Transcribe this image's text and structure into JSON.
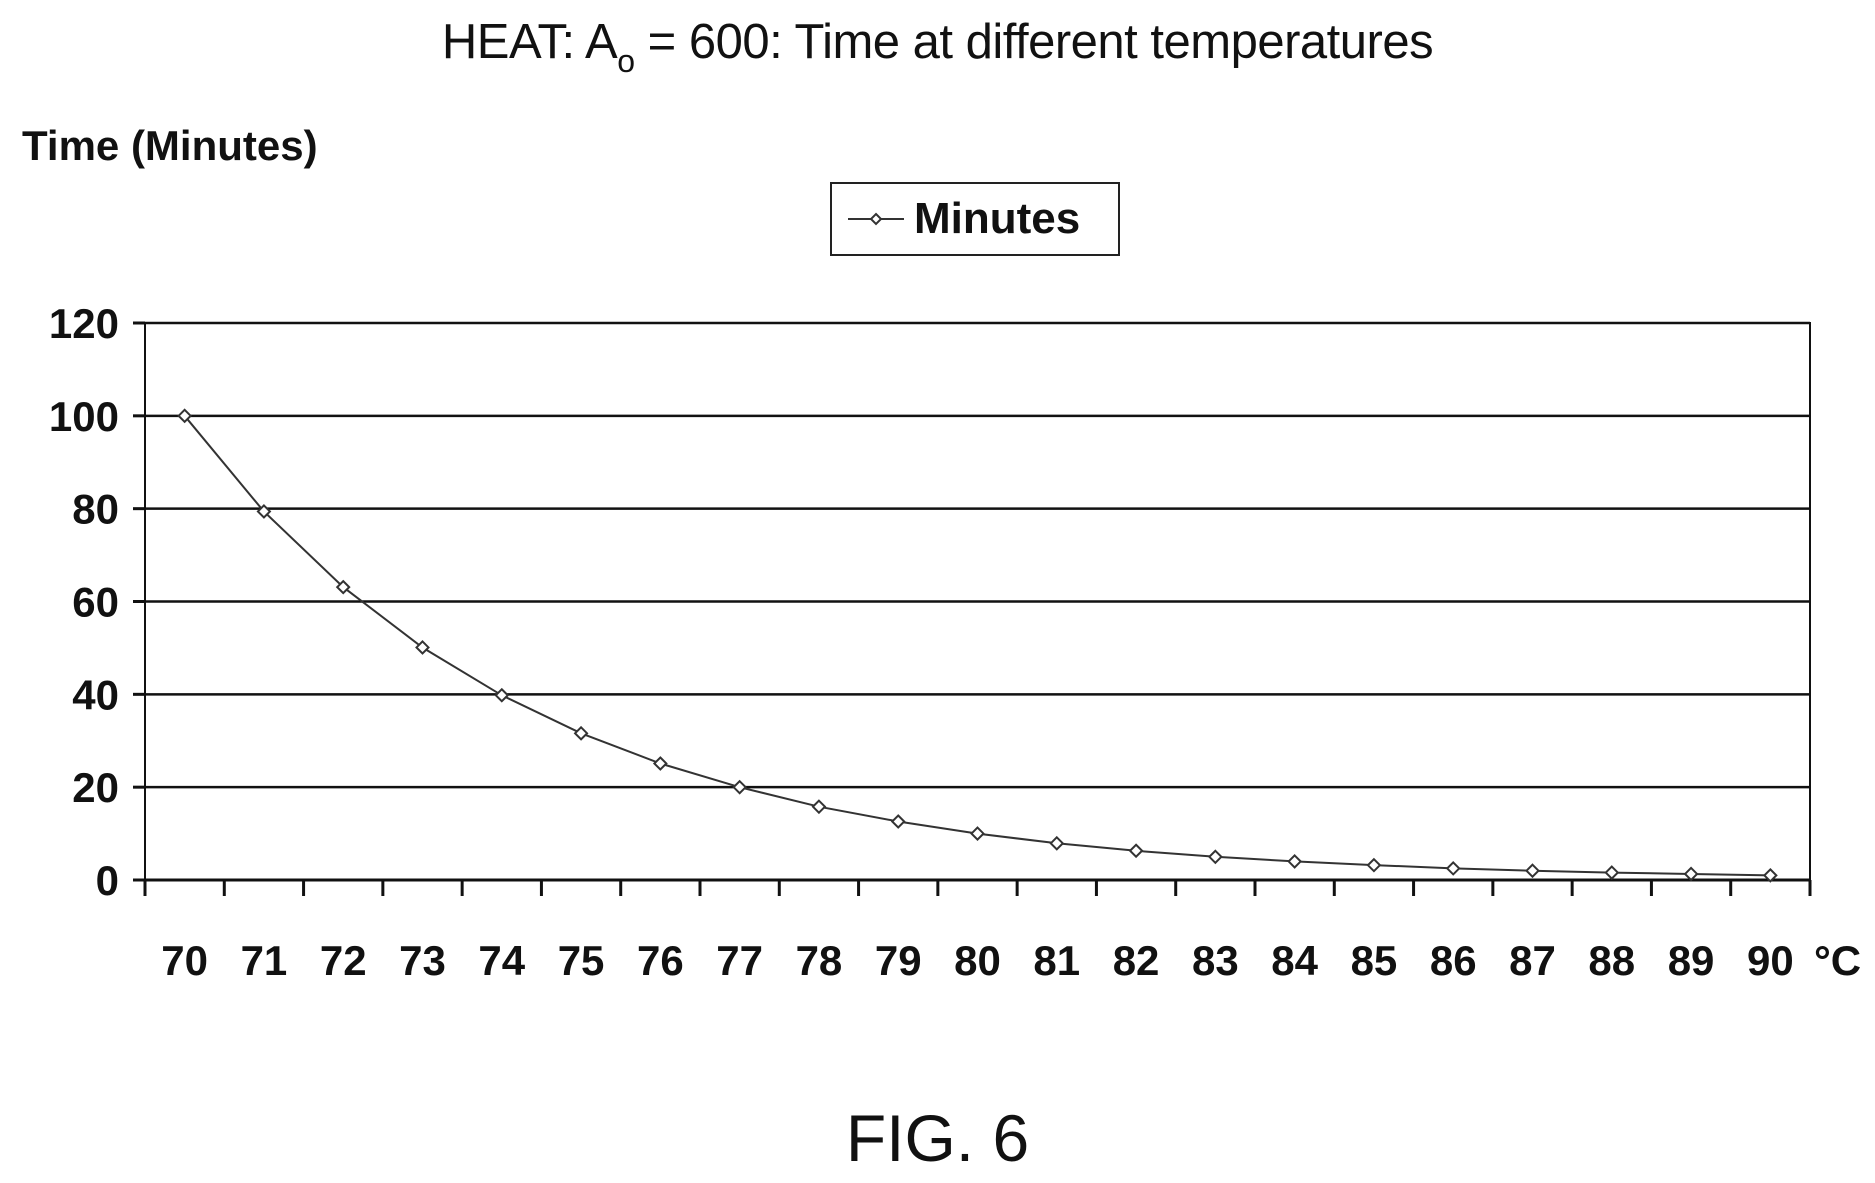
{
  "chart_data": {
    "type": "line",
    "title_main": "HEAT: A",
    "title_sub": "o",
    "title_rest": " = 600: Time at different temperatures",
    "ylabel": "Time (Minutes)",
    "xunit": "°C",
    "ylim": [
      0,
      120
    ],
    "yticks": [
      0,
      20,
      40,
      60,
      80,
      100,
      120
    ],
    "grid": true,
    "legend_position": "top-center",
    "categories": [
      "70",
      "71",
      "72",
      "73",
      "74",
      "75",
      "76",
      "77",
      "78",
      "79",
      "80",
      "81",
      "82",
      "83",
      "84",
      "85",
      "86",
      "87",
      "88",
      "89",
      "90"
    ],
    "series": [
      {
        "name": "Minutes",
        "values": [
          100,
          79.4,
          63.1,
          50.1,
          39.8,
          31.6,
          25.1,
          20.0,
          15.8,
          12.6,
          10.0,
          7.9,
          6.3,
          5.0,
          4.0,
          3.2,
          2.5,
          2.0,
          1.6,
          1.3,
          1.0
        ]
      }
    ],
    "colors": {
      "line": "#333333",
      "grid": "#111111",
      "axis": "#111111"
    }
  },
  "caption": "FIG. 6"
}
